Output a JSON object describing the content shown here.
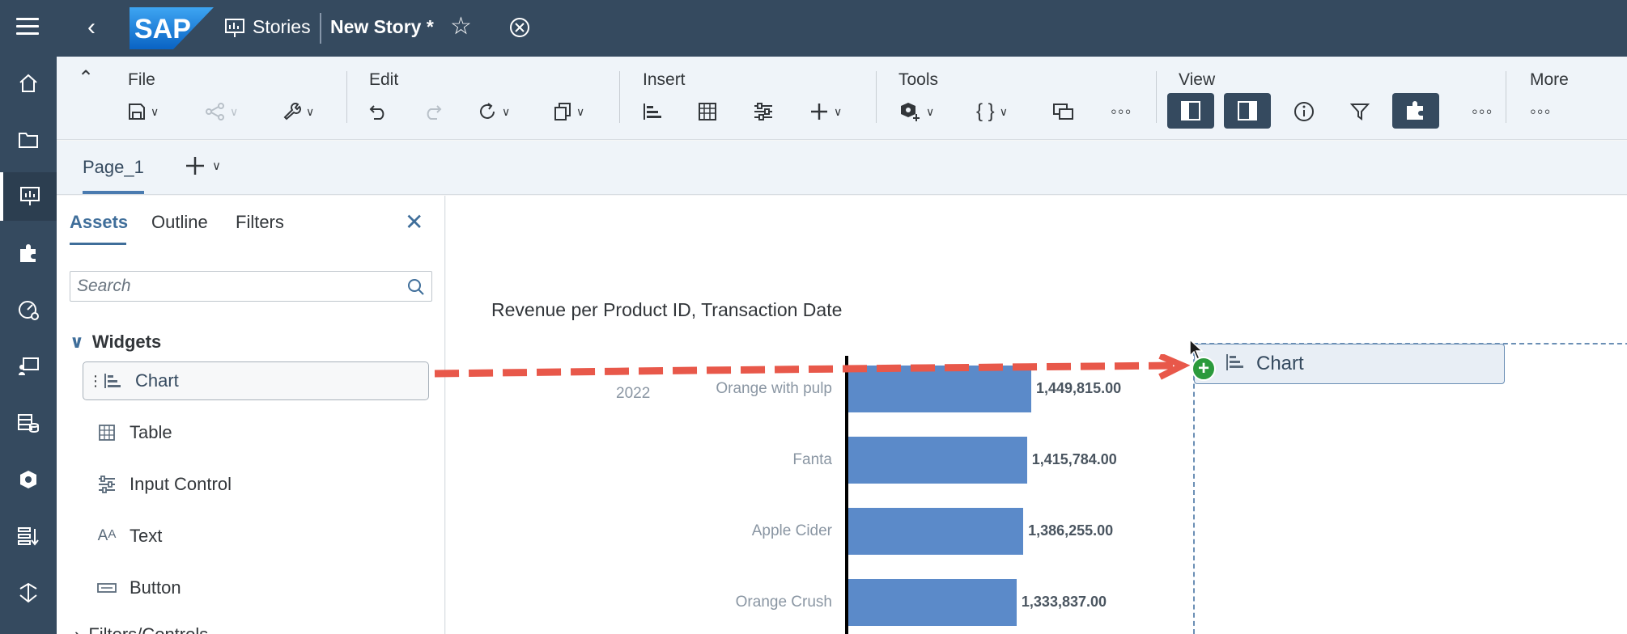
{
  "shell": {
    "stories_label": "Stories",
    "story_title": "New Story *"
  },
  "toolbar": {
    "file_label": "File",
    "edit_label": "Edit",
    "insert_label": "Insert",
    "tools_label": "Tools",
    "view_label": "View",
    "more_label": "More"
  },
  "pages": {
    "tab_label": "Page_1"
  },
  "panel": {
    "tabs": [
      "Assets",
      "Outline",
      "Filters"
    ],
    "search_placeholder": "Search",
    "widgets_header": "Widgets",
    "widgets": [
      "Chart",
      "Table",
      "Input Control",
      "Text",
      "Button"
    ],
    "next_section": "Filters/Controls"
  },
  "chart_data": {
    "type": "bar",
    "orientation": "horizontal",
    "title": "Revenue per Product ID, Transaction Date",
    "group_label": "2022",
    "categories": [
      "Orange with pulp",
      "Fanta",
      "Apple Cider",
      "Orange Crush"
    ],
    "values": [
      1449815.0,
      1415784.0,
      1386255.0,
      1333837.0
    ],
    "value_labels": [
      "1,449,815.00",
      "1,415,784.00",
      "1,386,255.00",
      "1,333,837.00"
    ],
    "color": "#5b8ac9"
  },
  "drag": {
    "ghost_label": "Chart",
    "plus": "+"
  },
  "colors": {
    "shell": "#354a5f",
    "accent": "#3f6e9a",
    "arrow": "#e8584a",
    "plus_badge": "#2b9a3c"
  }
}
